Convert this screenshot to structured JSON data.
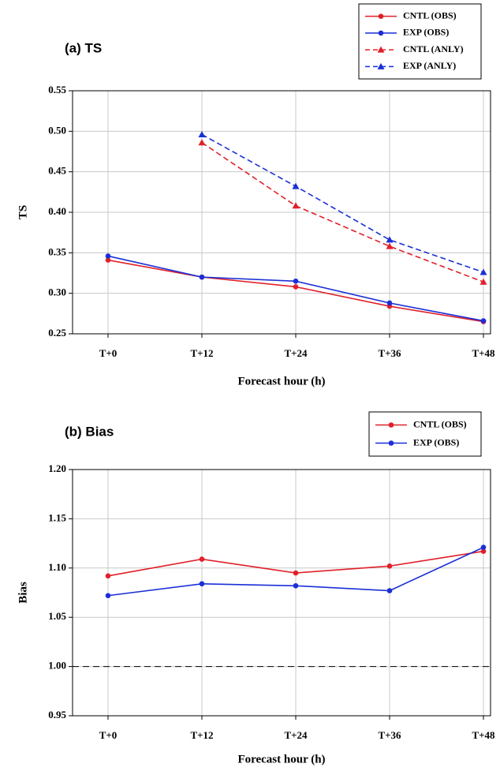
{
  "chart_data": [
    {
      "type": "line",
      "title": "(a) TS",
      "ylabel": "TS",
      "xlabel": "Forecast hour (h)",
      "categories": [
        "T+0",
        "T+12",
        "T+24",
        "T+36",
        "T+48"
      ],
      "ylim": [
        0.25,
        0.55
      ],
      "yticks": [
        0.25,
        {
          "value": 0.3,
          "label": "0.30"
        },
        0.35,
        {
          "value": 0.4,
          "label": "0.40"
        },
        0.45,
        {
          "value": 0.5,
          "label": "0.50"
        },
        0.55
      ],
      "grid": true,
      "legend": "top right",
      "series": [
        {
          "name": "CNTL (OBS)",
          "color": "#e0202a",
          "marker": "circle",
          "dash": false,
          "values": [
            0.341,
            0.32,
            0.308,
            0.284,
            0.265
          ]
        },
        {
          "name": "EXP (OBS)",
          "color": "#1a2fd6",
          "marker": "circle",
          "dash": false,
          "values": [
            0.346,
            0.32,
            0.315,
            0.288,
            0.266
          ]
        },
        {
          "name": "CNTL (ANLY)",
          "color": "#e0202a",
          "marker": "triangle",
          "dash": true,
          "values": [
            null,
            0.486,
            0.408,
            0.358,
            0.314
          ]
        },
        {
          "name": "EXP (ANLY)",
          "color": "#1a2fd6",
          "marker": "triangle",
          "dash": true,
          "values": [
            null,
            0.496,
            0.432,
            0.366,
            0.326
          ]
        }
      ]
    },
    {
      "type": "line",
      "title": "(b) Bias",
      "ylabel": "Bias",
      "xlabel": "Forecast hour (h)",
      "categories": [
        "T+0",
        "T+12",
        "T+24",
        "T+36",
        "T+48"
      ],
      "ylim": [
        0.95,
        1.2
      ],
      "yticks": [
        0.95,
        {
          "value": 1.0,
          "label": "1.00"
        },
        1.05,
        {
          "value": 1.1,
          "label": "1.10"
        },
        1.15,
        {
          "value": 1.2,
          "label": "1.20"
        }
      ],
      "grid": true,
      "legend": "top right",
      "reference_line": 1.0,
      "series": [
        {
          "name": "CNTL (OBS)",
          "color": "#e0202a",
          "marker": "circle",
          "dash": false,
          "values": [
            1.092,
            1.109,
            1.095,
            1.102,
            1.117
          ]
        },
        {
          "name": "EXP (OBS)",
          "color": "#1a2fd6",
          "marker": "circle",
          "dash": false,
          "values": [
            1.072,
            1.084,
            1.082,
            1.077,
            1.121
          ]
        }
      ]
    }
  ]
}
